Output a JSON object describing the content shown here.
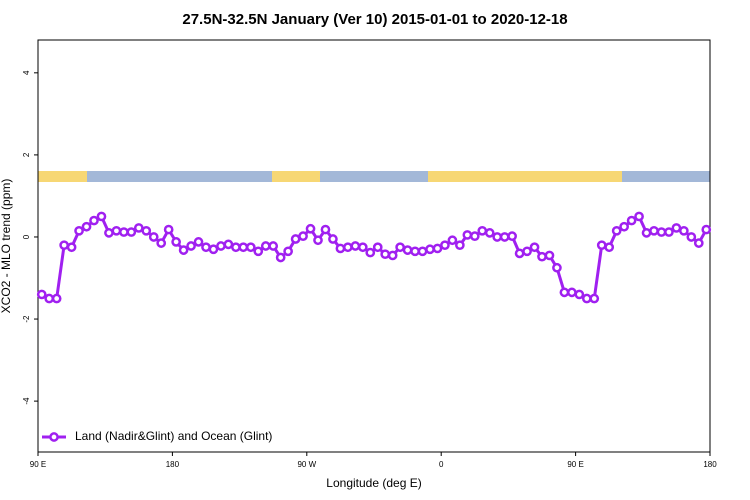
{
  "chart_data": {
    "type": "line",
    "title": "27.5N-32.5N January (Ver 10)   2015-01-01 to 2020-12-18",
    "x_label": "Longitude (deg E)",
    "y_label": "XCO2 - MLO trend (ppm)",
    "xlim": [
      90,
      540
    ],
    "ylim": [
      -5.24,
      4.8
    ],
    "xticks": [
      {
        "value": 90,
        "label": "90 E"
      },
      {
        "value": 180,
        "label": "180"
      },
      {
        "value": 270,
        "label": "90 W"
      },
      {
        "value": 360,
        "label": "0"
      },
      {
        "value": 450,
        "label": "90 E"
      },
      {
        "value": 540,
        "label": "180"
      }
    ],
    "yticks": [
      -4,
      -2,
      0,
      2,
      4
    ],
    "legend": "bottom-left",
    "series": [
      {
        "name": "Land (Nadir&Glint) and Ocean (Glint)",
        "color": "#a020f0",
        "x": [
          92.5,
          97.5,
          102.5,
          107.5,
          112.5,
          117.5,
          122.5,
          127.5,
          132.5,
          137.5,
          142.5,
          147.5,
          152.5,
          157.5,
          162.5,
          167.5,
          172.5,
          177.5,
          182.5,
          187.5,
          192.5,
          197.5,
          202.5,
          207.5,
          212.5,
          217.5,
          222.5,
          227.5,
          232.5,
          237.5,
          242.5,
          247.5,
          252.5,
          257.5,
          262.5,
          267.5,
          272.5,
          277.5,
          282.5,
          287.5,
          292.5,
          297.5,
          302.5,
          307.5,
          312.5,
          317.5,
          322.5,
          327.5,
          332.5,
          337.5,
          342.5,
          347.5,
          352.5,
          357.5,
          362.5,
          367.5,
          372.5,
          377.5,
          382.5,
          387.5,
          392.5,
          397.5,
          402.5,
          407.5,
          412.5,
          417.5,
          422.5,
          427.5,
          432.5,
          437.5,
          442.5,
          447.5,
          452.5,
          457.5,
          462.5,
          467.5,
          472.5,
          477.5,
          482.5,
          487.5,
          492.5,
          497.5,
          502.5,
          507.5,
          512.5,
          517.5,
          522.5,
          527.5,
          532.5,
          537.5
        ],
        "values": [
          -1.4,
          -1.5,
          -1.5,
          -0.2,
          -0.25,
          0.15,
          0.25,
          0.4,
          0.5,
          0.1,
          0.15,
          0.12,
          0.12,
          0.22,
          0.15,
          0,
          -0.15,
          0.18,
          -0.12,
          -0.32,
          -0.22,
          -0.12,
          -0.25,
          -0.3,
          -0.22,
          -0.18,
          -0.25,
          -0.25,
          -0.25,
          -0.35,
          -0.22,
          -0.22,
          -0.5,
          -0.35,
          -0.05,
          0.02,
          0.2,
          -0.08,
          0.18,
          -0.05,
          -0.28,
          -0.25,
          -0.22,
          -0.25,
          -0.38,
          -0.25,
          -0.42,
          -0.45,
          -0.25,
          -0.32,
          -0.35,
          -0.35,
          -0.3,
          -0.28,
          -0.2,
          -0.08,
          -0.2,
          0.05,
          0.02,
          0.15,
          0.1,
          0,
          0,
          0.02,
          -0.4,
          -0.35,
          -0.25,
          -0.48,
          -0.45,
          -0.75,
          -1.35,
          -1.35,
          -1.4,
          -1.5,
          -1.5,
          -0.2,
          -0.25,
          0.15,
          0.25,
          0.4,
          0.5,
          0.1,
          0.15,
          0.12,
          0.12,
          0.22,
          0.15,
          0,
          -0.15,
          0.18
        ]
      }
    ]
  }
}
